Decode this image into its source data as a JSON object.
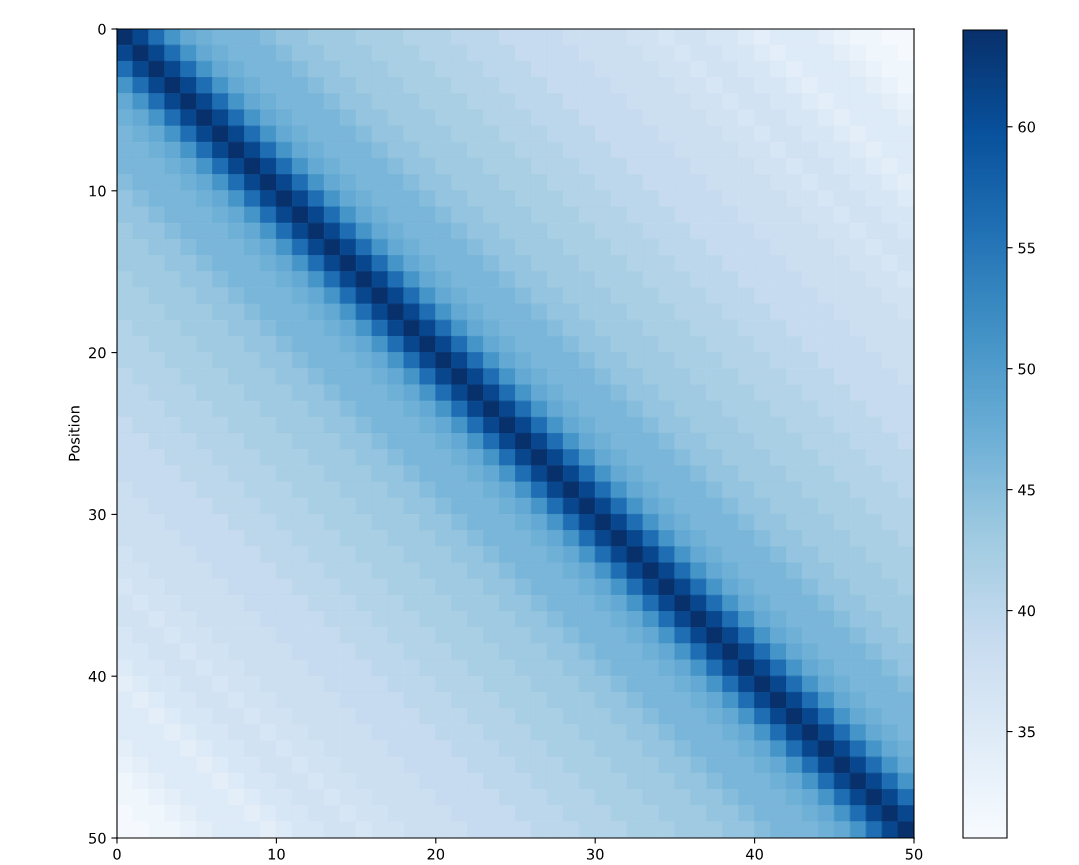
{
  "chart_data": {
    "type": "heatmap",
    "ylabel": "Position",
    "xlim": [
      0,
      50
    ],
    "xticks": [
      0,
      10,
      20,
      30,
      40,
      50
    ],
    "ylim": [
      50,
      0
    ],
    "yticks": [
      0,
      10,
      20,
      30,
      40,
      50
    ],
    "clim": [
      30.6,
      64
    ],
    "cticks": [
      35,
      40,
      45,
      50,
      55,
      60
    ],
    "cells": [
      [
        64,
        61,
        56,
        51,
        48,
        47,
        46,
        46,
        46,
        45,
        44,
        44,
        43,
        43,
        43,
        42,
        42,
        42,
        41,
        41,
        41,
        40,
        40,
        40,
        39,
        39,
        39,
        39,
        38,
        38,
        38,
        38,
        37,
        37,
        36,
        37,
        37,
        36,
        36,
        35,
        34,
        35,
        35,
        35,
        34,
        33,
        32,
        32,
        31,
        31
      ],
      [
        61,
        64,
        61,
        56,
        51,
        48,
        47,
        46,
        46,
        46,
        45,
        44,
        44,
        43,
        43,
        43,
        42,
        42,
        42,
        41,
        41,
        41,
        40,
        40,
        40,
        39,
        39,
        39,
        39,
        38,
        38,
        38,
        38,
        37,
        37,
        36,
        37,
        37,
        36,
        36,
        35,
        34,
        35,
        35,
        35,
        34,
        33,
        32,
        32,
        31
      ],
      [
        56,
        61,
        64,
        61,
        56,
        51,
        48,
        47,
        46,
        46,
        46,
        45,
        44,
        44,
        43,
        43,
        43,
        42,
        42,
        42,
        41,
        41,
        41,
        40,
        40,
        40,
        39,
        39,
        39,
        39,
        38,
        38,
        38,
        38,
        37,
        37,
        36,
        37,
        37,
        36,
        36,
        35,
        34,
        35,
        35,
        35,
        34,
        33,
        32,
        32
      ],
      [
        51,
        56,
        61,
        64,
        61,
        56,
        51,
        48,
        47,
        46,
        46,
        46,
        45,
        44,
        44,
        43,
        43,
        43,
        42,
        42,
        42,
        41,
        41,
        41,
        40,
        40,
        40,
        39,
        39,
        39,
        39,
        38,
        38,
        38,
        38,
        37,
        37,
        36,
        37,
        37,
        36,
        36,
        35,
        34,
        35,
        35,
        35,
        34,
        33,
        32
      ],
      [
        48,
        51,
        56,
        61,
        64,
        61,
        56,
        51,
        48,
        47,
        46,
        46,
        46,
        45,
        44,
        44,
        43,
        43,
        43,
        42,
        42,
        42,
        41,
        41,
        41,
        40,
        40,
        40,
        39,
        39,
        39,
        39,
        38,
        38,
        38,
        38,
        37,
        37,
        36,
        37,
        37,
        36,
        36,
        35,
        34,
        35,
        35,
        35,
        34,
        33
      ],
      [
        47,
        48,
        51,
        56,
        61,
        64,
        61,
        56,
        51,
        48,
        47,
        46,
        46,
        46,
        45,
        44,
        44,
        43,
        43,
        43,
        42,
        42,
        42,
        41,
        41,
        41,
        40,
        40,
        40,
        39,
        39,
        39,
        39,
        38,
        38,
        38,
        38,
        37,
        37,
        36,
        37,
        37,
        36,
        36,
        35,
        34,
        35,
        35,
        35,
        34
      ],
      [
        46,
        47,
        48,
        51,
        56,
        61,
        64,
        61,
        56,
        51,
        48,
        47,
        46,
        46,
        46,
        45,
        44,
        44,
        43,
        43,
        43,
        42,
        42,
        42,
        41,
        41,
        41,
        40,
        40,
        40,
        39,
        39,
        39,
        39,
        38,
        38,
        38,
        38,
        37,
        37,
        36,
        37,
        37,
        36,
        36,
        35,
        34,
        35,
        35,
        35
      ],
      [
        46,
        46,
        47,
        48,
        51,
        56,
        61,
        64,
        61,
        56,
        51,
        48,
        47,
        46,
        46,
        46,
        45,
        44,
        44,
        43,
        43,
        43,
        42,
        42,
        42,
        41,
        41,
        41,
        40,
        40,
        40,
        39,
        39,
        39,
        39,
        38,
        38,
        38,
        38,
        37,
        37,
        36,
        37,
        37,
        36,
        36,
        35,
        34,
        35,
        35
      ],
      [
        46,
        46,
        46,
        47,
        48,
        51,
        56,
        61,
        64,
        61,
        56,
        51,
        48,
        47,
        46,
        46,
        46,
        45,
        44,
        44,
        43,
        43,
        43,
        42,
        42,
        42,
        41,
        41,
        41,
        40,
        40,
        40,
        39,
        39,
        39,
        39,
        38,
        38,
        38,
        38,
        37,
        37,
        36,
        37,
        37,
        36,
        36,
        35,
        34,
        35
      ],
      [
        45,
        46,
        46,
        46,
        47,
        48,
        51,
        56,
        61,
        64,
        61,
        56,
        51,
        48,
        47,
        46,
        46,
        46,
        45,
        44,
        44,
        43,
        43,
        43,
        42,
        42,
        42,
        41,
        41,
        41,
        40,
        40,
        40,
        39,
        39,
        39,
        39,
        38,
        38,
        38,
        38,
        37,
        37,
        36,
        37,
        37,
        36,
        36,
        35,
        34
      ],
      [
        44,
        45,
        46,
        46,
        46,
        47,
        48,
        51,
        56,
        61,
        64,
        61,
        56,
        51,
        48,
        47,
        46,
        46,
        46,
        45,
        44,
        44,
        43,
        43,
        43,
        42,
        42,
        42,
        41,
        41,
        41,
        40,
        40,
        40,
        39,
        39,
        39,
        39,
        38,
        38,
        38,
        38,
        37,
        37,
        36,
        37,
        37,
        36,
        36,
        35
      ],
      [
        44,
        44,
        45,
        46,
        46,
        46,
        47,
        48,
        51,
        56,
        61,
        64,
        61,
        56,
        51,
        48,
        47,
        46,
        46,
        46,
        45,
        44,
        44,
        43,
        43,
        43,
        42,
        42,
        42,
        41,
        41,
        41,
        40,
        40,
        40,
        39,
        39,
        39,
        39,
        38,
        38,
        38,
        38,
        37,
        37,
        36,
        37,
        37,
        36,
        36
      ],
      [
        43,
        44,
        44,
        45,
        46,
        46,
        46,
        47,
        48,
        51,
        56,
        61,
        64,
        61,
        56,
        51,
        48,
        47,
        46,
        46,
        46,
        45,
        44,
        44,
        43,
        43,
        43,
        42,
        42,
        42,
        41,
        41,
        41,
        40,
        40,
        40,
        39,
        39,
        39,
        39,
        38,
        38,
        38,
        38,
        37,
        37,
        36,
        37,
        37,
        36
      ],
      [
        43,
        43,
        44,
        44,
        45,
        46,
        46,
        46,
        47,
        48,
        51,
        56,
        61,
        64,
        61,
        56,
        51,
        48,
        47,
        46,
        46,
        46,
        45,
        44,
        44,
        43,
        43,
        43,
        42,
        42,
        42,
        41,
        41,
        41,
        40,
        40,
        40,
        39,
        39,
        39,
        39,
        38,
        38,
        38,
        38,
        37,
        37,
        36,
        37,
        37
      ],
      [
        43,
        43,
        43,
        44,
        44,
        45,
        46,
        46,
        46,
        47,
        48,
        51,
        56,
        61,
        64,
        61,
        56,
        51,
        48,
        47,
        46,
        46,
        46,
        45,
        44,
        44,
        43,
        43,
        43,
        42,
        42,
        42,
        41,
        41,
        41,
        40,
        40,
        40,
        39,
        39,
        39,
        39,
        38,
        38,
        38,
        38,
        37,
        37,
        36,
        37
      ],
      [
        42,
        43,
        43,
        43,
        44,
        44,
        45,
        46,
        46,
        46,
        47,
        48,
        51,
        56,
        61,
        64,
        61,
        56,
        51,
        48,
        47,
        46,
        46,
        46,
        45,
        44,
        44,
        43,
        43,
        43,
        42,
        42,
        42,
        41,
        41,
        41,
        40,
        40,
        40,
        39,
        39,
        39,
        39,
        38,
        38,
        38,
        38,
        37,
        37,
        36
      ],
      [
        42,
        42,
        43,
        43,
        43,
        44,
        44,
        45,
        46,
        46,
        46,
        47,
        48,
        51,
        56,
        61,
        64,
        61,
        56,
        51,
        48,
        47,
        46,
        46,
        46,
        45,
        44,
        44,
        43,
        43,
        43,
        42,
        42,
        42,
        41,
        41,
        41,
        40,
        40,
        40,
        39,
        39,
        39,
        39,
        38,
        38,
        38,
        38,
        37,
        37
      ],
      [
        42,
        42,
        42,
        43,
        43,
        43,
        44,
        44,
        45,
        46,
        46,
        46,
        47,
        48,
        51,
        56,
        61,
        64,
        61,
        56,
        51,
        48,
        47,
        46,
        46,
        46,
        45,
        44,
        44,
        43,
        43,
        43,
        42,
        42,
        42,
        41,
        41,
        41,
        40,
        40,
        40,
        39,
        39,
        39,
        39,
        38,
        38,
        38,
        38,
        37
      ],
      [
        41,
        42,
        42,
        42,
        43,
        43,
        43,
        44,
        44,
        45,
        46,
        46,
        46,
        47,
        48,
        51,
        56,
        61,
        64,
        61,
        56,
        51,
        48,
        47,
        46,
        46,
        46,
        45,
        44,
        44,
        43,
        43,
        43,
        42,
        42,
        42,
        41,
        41,
        41,
        40,
        40,
        40,
        39,
        39,
        39,
        39,
        38,
        38,
        38,
        38
      ],
      [
        41,
        41,
        42,
        42,
        42,
        43,
        43,
        43,
        44,
        44,
        45,
        46,
        46,
        46,
        47,
        48,
        51,
        56,
        61,
        64,
        61,
        56,
        51,
        48,
        47,
        46,
        46,
        46,
        45,
        44,
        44,
        43,
        43,
        43,
        42,
        42,
        42,
        41,
        41,
        41,
        40,
        40,
        40,
        39,
        39,
        39,
        39,
        38,
        38,
        38
      ],
      [
        41,
        41,
        41,
        42,
        42,
        42,
        43,
        43,
        43,
        44,
        44,
        45,
        46,
        46,
        46,
        47,
        48,
        51,
        56,
        61,
        64,
        61,
        56,
        51,
        48,
        47,
        46,
        46,
        46,
        45,
        44,
        44,
        43,
        43,
        43,
        42,
        42,
        42,
        41,
        41,
        41,
        40,
        40,
        40,
        39,
        39,
        39,
        39,
        38,
        38
      ],
      [
        40,
        41,
        41,
        41,
        42,
        42,
        42,
        43,
        43,
        43,
        44,
        44,
        45,
        46,
        46,
        46,
        47,
        48,
        51,
        56,
        61,
        64,
        61,
        56,
        51,
        48,
        47,
        46,
        46,
        46,
        45,
        44,
        44,
        43,
        43,
        43,
        42,
        42,
        42,
        41,
        41,
        41,
        40,
        40,
        40,
        39,
        39,
        39,
        39,
        38
      ],
      [
        40,
        40,
        41,
        41,
        41,
        42,
        42,
        42,
        43,
        43,
        43,
        44,
        44,
        45,
        46,
        46,
        46,
        47,
        48,
        51,
        56,
        61,
        64,
        61,
        56,
        51,
        48,
        47,
        46,
        46,
        46,
        45,
        44,
        44,
        43,
        43,
        43,
        42,
        42,
        42,
        41,
        41,
        41,
        40,
        40,
        40,
        39,
        39,
        39,
        39
      ],
      [
        40,
        40,
        40,
        41,
        41,
        41,
        42,
        42,
        42,
        43,
        43,
        43,
        44,
        44,
        45,
        46,
        46,
        46,
        47,
        48,
        51,
        56,
        61,
        64,
        61,
        56,
        51,
        48,
        47,
        46,
        46,
        46,
        45,
        44,
        44,
        43,
        43,
        43,
        42,
        42,
        42,
        41,
        41,
        41,
        40,
        40,
        40,
        39,
        39,
        39
      ],
      [
        39,
        40,
        40,
        40,
        41,
        41,
        41,
        42,
        42,
        42,
        43,
        43,
        43,
        44,
        44,
        45,
        46,
        46,
        46,
        47,
        48,
        51,
        56,
        61,
        64,
        61,
        56,
        51,
        48,
        47,
        46,
        46,
        46,
        45,
        44,
        44,
        43,
        43,
        43,
        42,
        42,
        42,
        41,
        41,
        41,
        40,
        40,
        40,
        39,
        39
      ],
      [
        39,
        39,
        40,
        40,
        40,
        41,
        41,
        41,
        42,
        42,
        42,
        43,
        43,
        43,
        44,
        44,
        45,
        46,
        46,
        46,
        47,
        48,
        51,
        56,
        61,
        64,
        61,
        56,
        51,
        48,
        47,
        46,
        46,
        46,
        45,
        44,
        44,
        43,
        43,
        43,
        42,
        42,
        42,
        41,
        41,
        41,
        40,
        40,
        40,
        39
      ],
      [
        39,
        39,
        39,
        40,
        40,
        40,
        41,
        41,
        41,
        42,
        42,
        42,
        43,
        43,
        43,
        44,
        44,
        45,
        46,
        46,
        46,
        47,
        48,
        51,
        56,
        61,
        64,
        61,
        56,
        51,
        48,
        47,
        46,
        46,
        46,
        45,
        44,
        44,
        43,
        43,
        43,
        42,
        42,
        42,
        41,
        41,
        41,
        40,
        40,
        40
      ],
      [
        39,
        39,
        39,
        39,
        40,
        40,
        40,
        41,
        41,
        41,
        42,
        42,
        42,
        43,
        43,
        43,
        44,
        44,
        45,
        46,
        46,
        46,
        47,
        48,
        51,
        56,
        61,
        64,
        61,
        56,
        51,
        48,
        47,
        46,
        46,
        46,
        45,
        44,
        44,
        43,
        43,
        43,
        42,
        42,
        42,
        41,
        41,
        41,
        40,
        40
      ],
      [
        38,
        39,
        39,
        39,
        39,
        40,
        40,
        40,
        41,
        41,
        41,
        42,
        42,
        42,
        43,
        43,
        43,
        44,
        44,
        45,
        46,
        46,
        46,
        47,
        48,
        51,
        56,
        61,
        64,
        61,
        56,
        51,
        48,
        47,
        46,
        46,
        46,
        45,
        44,
        44,
        43,
        43,
        43,
        42,
        42,
        42,
        41,
        41,
        41,
        40
      ],
      [
        38,
        38,
        39,
        39,
        39,
        39,
        40,
        40,
        40,
        41,
        41,
        41,
        42,
        42,
        42,
        43,
        43,
        43,
        44,
        44,
        45,
        46,
        46,
        46,
        47,
        48,
        51,
        56,
        61,
        64,
        61,
        56,
        51,
        48,
        47,
        46,
        46,
        46,
        45,
        44,
        44,
        43,
        43,
        43,
        42,
        42,
        42,
        41,
        41,
        41
      ],
      [
        38,
        38,
        38,
        39,
        39,
        39,
        39,
        40,
        40,
        40,
        41,
        41,
        41,
        42,
        42,
        42,
        43,
        43,
        43,
        44,
        44,
        45,
        46,
        46,
        46,
        47,
        48,
        51,
        56,
        61,
        64,
        61,
        56,
        51,
        48,
        47,
        46,
        46,
        46,
        45,
        44,
        44,
        43,
        43,
        43,
        42,
        42,
        42,
        41,
        41
      ],
      [
        38,
        38,
        38,
        38,
        39,
        39,
        39,
        39,
        40,
        40,
        40,
        41,
        41,
        41,
        42,
        42,
        42,
        43,
        43,
        43,
        44,
        44,
        45,
        46,
        46,
        46,
        47,
        48,
        51,
        56,
        61,
        64,
        61,
        56,
        51,
        48,
        47,
        46,
        46,
        46,
        45,
        44,
        44,
        43,
        43,
        43,
        42,
        42,
        42,
        41
      ],
      [
        37,
        38,
        38,
        38,
        38,
        39,
        39,
        39,
        39,
        40,
        40,
        40,
        41,
        41,
        41,
        42,
        42,
        42,
        43,
        43,
        43,
        44,
        44,
        45,
        46,
        46,
        46,
        47,
        48,
        51,
        56,
        61,
        64,
        61,
        56,
        51,
        48,
        47,
        46,
        46,
        46,
        45,
        44,
        44,
        43,
        43,
        43,
        42,
        42,
        42
      ],
      [
        37,
        37,
        38,
        38,
        38,
        38,
        39,
        39,
        39,
        39,
        40,
        40,
        40,
        41,
        41,
        41,
        42,
        42,
        42,
        43,
        43,
        43,
        44,
        44,
        45,
        46,
        46,
        46,
        47,
        48,
        51,
        56,
        61,
        64,
        61,
        56,
        51,
        48,
        47,
        46,
        46,
        46,
        45,
        44,
        44,
        43,
        43,
        43,
        42,
        42
      ],
      [
        36,
        37,
        37,
        38,
        38,
        38,
        38,
        39,
        39,
        39,
        39,
        40,
        40,
        40,
        41,
        41,
        41,
        42,
        42,
        42,
        43,
        43,
        43,
        44,
        44,
        45,
        46,
        46,
        46,
        47,
        48,
        51,
        56,
        61,
        64,
        61,
        56,
        51,
        48,
        47,
        46,
        46,
        46,
        45,
        44,
        44,
        43,
        43,
        43,
        42
      ],
      [
        37,
        36,
        37,
        37,
        38,
        38,
        38,
        38,
        39,
        39,
        39,
        39,
        40,
        40,
        40,
        41,
        41,
        41,
        42,
        42,
        42,
        43,
        43,
        43,
        44,
        44,
        45,
        46,
        46,
        46,
        47,
        48,
        51,
        56,
        61,
        64,
        61,
        56,
        51,
        48,
        47,
        46,
        46,
        46,
        45,
        44,
        44,
        43,
        43,
        43
      ],
      [
        37,
        37,
        36,
        37,
        37,
        38,
        38,
        38,
        38,
        39,
        39,
        39,
        39,
        40,
        40,
        40,
        41,
        41,
        41,
        42,
        42,
        42,
        43,
        43,
        43,
        44,
        44,
        45,
        46,
        46,
        46,
        47,
        48,
        51,
        56,
        61,
        64,
        61,
        56,
        51,
        48,
        47,
        46,
        46,
        46,
        45,
        44,
        44,
        43,
        43
      ],
      [
        36,
        37,
        37,
        36,
        37,
        37,
        38,
        38,
        38,
        38,
        39,
        39,
        39,
        39,
        40,
        40,
        40,
        41,
        41,
        41,
        42,
        42,
        42,
        43,
        43,
        43,
        44,
        44,
        45,
        46,
        46,
        46,
        47,
        48,
        51,
        56,
        61,
        64,
        61,
        56,
        51,
        48,
        47,
        46,
        46,
        46,
        45,
        44,
        44,
        43
      ],
      [
        36,
        36,
        37,
        37,
        36,
        37,
        37,
        38,
        38,
        38,
        38,
        39,
        39,
        39,
        39,
        40,
        40,
        40,
        41,
        41,
        41,
        42,
        42,
        42,
        43,
        43,
        43,
        44,
        44,
        45,
        46,
        46,
        46,
        47,
        48,
        51,
        56,
        61,
        64,
        61,
        56,
        51,
        48,
        47,
        46,
        46,
        46,
        45,
        44,
        44
      ],
      [
        35,
        36,
        36,
        37,
        37,
        36,
        37,
        37,
        38,
        38,
        38,
        38,
        39,
        39,
        39,
        39,
        40,
        40,
        40,
        41,
        41,
        41,
        42,
        42,
        42,
        43,
        43,
        43,
        44,
        44,
        45,
        46,
        46,
        46,
        47,
        48,
        51,
        56,
        61,
        64,
        61,
        56,
        51,
        48,
        47,
        46,
        46,
        46,
        45,
        44
      ],
      [
        34,
        35,
        36,
        36,
        37,
        37,
        36,
        37,
        37,
        38,
        38,
        38,
        38,
        39,
        39,
        39,
        39,
        40,
        40,
        40,
        41,
        41,
        41,
        42,
        42,
        42,
        43,
        43,
        43,
        44,
        44,
        45,
        46,
        46,
        46,
        47,
        48,
        51,
        56,
        61,
        64,
        61,
        56,
        51,
        48,
        47,
        46,
        46,
        46,
        45
      ],
      [
        35,
        34,
        35,
        36,
        36,
        37,
        37,
        36,
        37,
        37,
        38,
        38,
        38,
        38,
        39,
        39,
        39,
        39,
        40,
        40,
        40,
        41,
        41,
        41,
        42,
        42,
        42,
        43,
        43,
        43,
        44,
        44,
        45,
        46,
        46,
        46,
        47,
        48,
        51,
        56,
        61,
        64,
        61,
        56,
        51,
        48,
        47,
        46,
        46,
        46
      ],
      [
        35,
        35,
        34,
        35,
        36,
        36,
        37,
        37,
        36,
        37,
        37,
        38,
        38,
        38,
        38,
        39,
        39,
        39,
        39,
        40,
        40,
        40,
        41,
        41,
        41,
        42,
        42,
        42,
        43,
        43,
        43,
        44,
        44,
        45,
        46,
        46,
        46,
        47,
        48,
        51,
        56,
        61,
        64,
        61,
        56,
        51,
        48,
        47,
        46,
        46
      ],
      [
        35,
        35,
        35,
        34,
        35,
        36,
        36,
        37,
        37,
        36,
        37,
        37,
        38,
        38,
        38,
        38,
        39,
        39,
        39,
        39,
        40,
        40,
        40,
        41,
        41,
        41,
        42,
        42,
        42,
        43,
        43,
        43,
        44,
        44,
        45,
        46,
        46,
        46,
        47,
        48,
        51,
        56,
        61,
        64,
        61,
        56,
        51,
        48,
        47,
        46
      ],
      [
        34,
        35,
        35,
        35,
        34,
        35,
        36,
        36,
        37,
        37,
        36,
        37,
        37,
        38,
        38,
        38,
        38,
        39,
        39,
        39,
        39,
        40,
        40,
        40,
        41,
        41,
        41,
        42,
        42,
        42,
        43,
        43,
        43,
        44,
        44,
        45,
        46,
        46,
        46,
        47,
        48,
        51,
        56,
        61,
        64,
        61,
        56,
        51,
        48,
        47
      ],
      [
        33,
        34,
        35,
        35,
        35,
        34,
        35,
        36,
        36,
        37,
        37,
        36,
        37,
        37,
        38,
        38,
        38,
        38,
        39,
        39,
        39,
        39,
        40,
        40,
        40,
        41,
        41,
        41,
        42,
        42,
        42,
        43,
        43,
        43,
        44,
        44,
        45,
        46,
        46,
        46,
        47,
        48,
        51,
        56,
        61,
        64,
        61,
        56,
        51,
        48
      ],
      [
        32,
        33,
        34,
        35,
        35,
        35,
        34,
        35,
        36,
        36,
        37,
        37,
        36,
        37,
        37,
        38,
        38,
        38,
        38,
        39,
        39,
        39,
        39,
        40,
        40,
        40,
        41,
        41,
        41,
        42,
        42,
        42,
        43,
        43,
        43,
        44,
        44,
        45,
        46,
        46,
        46,
        47,
        48,
        51,
        56,
        61,
        64,
        61,
        56,
        51
      ],
      [
        32,
        32,
        33,
        34,
        35,
        35,
        35,
        34,
        35,
        36,
        36,
        37,
        37,
        36,
        37,
        37,
        38,
        38,
        38,
        38,
        39,
        39,
        39,
        39,
        40,
        40,
        40,
        41,
        41,
        41,
        42,
        42,
        42,
        43,
        43,
        43,
        44,
        44,
        45,
        46,
        46,
        46,
        47,
        48,
        51,
        56,
        61,
        64,
        61,
        56
      ],
      [
        31,
        32,
        32,
        33,
        34,
        35,
        35,
        35,
        34,
        35,
        36,
        36,
        37,
        37,
        36,
        37,
        37,
        38,
        38,
        38,
        38,
        39,
        39,
        39,
        39,
        40,
        40,
        40,
        41,
        41,
        41,
        42,
        42,
        42,
        43,
        43,
        43,
        44,
        44,
        45,
        46,
        46,
        46,
        47,
        48,
        51,
        56,
        61,
        64,
        61
      ],
      [
        31,
        31,
        32,
        32,
        33,
        34,
        35,
        35,
        35,
        34,
        35,
        36,
        36,
        37,
        37,
        36,
        37,
        37,
        38,
        38,
        38,
        38,
        39,
        39,
        39,
        39,
        40,
        40,
        40,
        41,
        41,
        41,
        42,
        42,
        42,
        43,
        43,
        43,
        44,
        44,
        45,
        46,
        46,
        46,
        47,
        48,
        51,
        56,
        61,
        64
      ]
    ]
  }
}
